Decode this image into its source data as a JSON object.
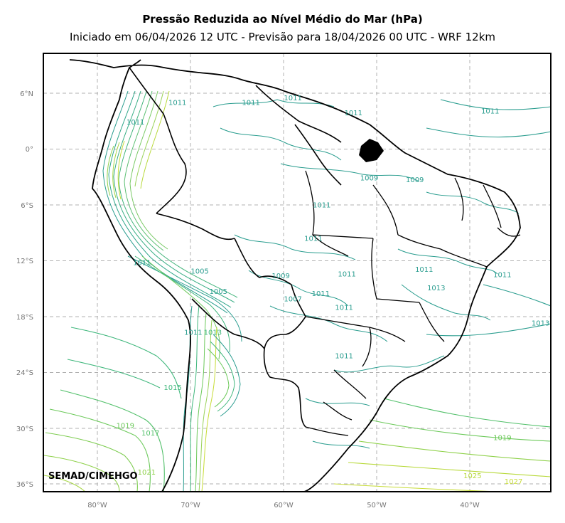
{
  "header": {
    "title": "Pressão Reduzida ao Nível Médio do Mar (hPa)",
    "subtitle": "Iniciado em 06/04/2026 12 UTC - Previsão para 18/04/2026 00 UTC - WRF 12km"
  },
  "credit": "SEMAD/CIMEHGO",
  "axes": {
    "lat_labels": [
      "6°N",
      "0°",
      "6°S",
      "12°S",
      "18°S",
      "24°S",
      "30°S",
      "36°S"
    ],
    "lon_labels": [
      "80°W",
      "70°W",
      "60°W",
      "50°W",
      "40°W"
    ]
  },
  "contour_labels": [
    {
      "text": "1011",
      "lon": -59.0,
      "lat": 5.5,
      "color": "#2a9d8f"
    },
    {
      "text": "1011",
      "lon": -63.5,
      "lat": 5.0,
      "color": "#2a9d8f"
    },
    {
      "text": "1011",
      "lon": -52.5,
      "lat": 3.9,
      "color": "#2a9d8f"
    },
    {
      "text": "1011",
      "lon": -37.8,
      "lat": 4.1,
      "color": "#2a9d8f"
    },
    {
      "text": "1009",
      "lon": -50.8,
      "lat": -3.1,
      "color": "#2a9d8f"
    },
    {
      "text": "1009",
      "lon": -45.9,
      "lat": -3.3,
      "color": "#2a9d8f"
    },
    {
      "text": "1011",
      "lon": -55.9,
      "lat": -6.0,
      "color": "#2a9d8f"
    },
    {
      "text": "1011",
      "lon": -56.8,
      "lat": -9.6,
      "color": "#2a9d8f"
    },
    {
      "text": "1011",
      "lon": -53.2,
      "lat": -13.4,
      "color": "#2a9d8f"
    },
    {
      "text": "1011",
      "lon": -44.9,
      "lat": -12.9,
      "color": "#2a9d8f"
    },
    {
      "text": "1011",
      "lon": -36.5,
      "lat": -13.5,
      "color": "#2a9d8f"
    },
    {
      "text": "1013",
      "lon": -43.6,
      "lat": -14.9,
      "color": "#2a9d8f"
    },
    {
      "text": "1011",
      "lon": -56.0,
      "lat": -15.5,
      "color": "#2a9d8f"
    },
    {
      "text": "1011",
      "lon": -53.5,
      "lat": -17.0,
      "color": "#2a9d8f"
    },
    {
      "text": "1009",
      "lon": -60.3,
      "lat": -13.6,
      "color": "#2a9d8f"
    },
    {
      "text": "1007",
      "lon": -59.0,
      "lat": -16.1,
      "color": "#2a9d8f"
    },
    {
      "text": "1005",
      "lon": -69.0,
      "lat": -13.1,
      "color": "#2a9d8f"
    },
    {
      "text": "1005",
      "lon": -67.0,
      "lat": -15.3,
      "color": "#2a9d8f"
    },
    {
      "text": "1013",
      "lon": -32.4,
      "lat": -18.7,
      "color": "#2a9d8f"
    },
    {
      "text": "1011",
      "lon": -53.5,
      "lat": -22.2,
      "color": "#2a9d8f"
    },
    {
      "text": "1015",
      "lon": -71.9,
      "lat": -25.6,
      "color": "#3fb77c"
    },
    {
      "text": "1019",
      "lon": -77.0,
      "lat": -29.7,
      "color": "#6cc95a"
    },
    {
      "text": "1017",
      "lon": -74.3,
      "lat": -30.5,
      "color": "#52c06a"
    },
    {
      "text": "1019",
      "lon": -36.5,
      "lat": -31.0,
      "color": "#6cc95a"
    },
    {
      "text": "1021",
      "lon": -74.7,
      "lat": -34.7,
      "color": "#8fd14a"
    },
    {
      "text": "1025",
      "lon": -39.7,
      "lat": -35.1,
      "color": "#b8d93a"
    },
    {
      "text": "1027",
      "lon": -35.3,
      "lat": -35.7,
      "color": "#c7dc36"
    },
    {
      "text": "1011",
      "lon": -71.4,
      "lat": 5.0,
      "color": "#2a9d8f"
    },
    {
      "text": "1011",
      "lon": -75.9,
      "lat": 2.9,
      "color": "#2a9d8f"
    },
    {
      "text": "1011",
      "lon": -75.2,
      "lat": -12.2,
      "color": "#2a9d8f"
    },
    {
      "text": "1011",
      "lon": -69.7,
      "lat": -19.7,
      "color": "#2a9d8f"
    },
    {
      "text": "1013",
      "lon": -67.6,
      "lat": -19.7,
      "color": "#3fb77c"
    }
  ],
  "colors": {
    "contour_low": "#2a9d8f",
    "contour_mid": "#3fb77c",
    "contour_high": "#b8d93a",
    "boundaries": "#000000",
    "grid": "#b0b0b0"
  }
}
